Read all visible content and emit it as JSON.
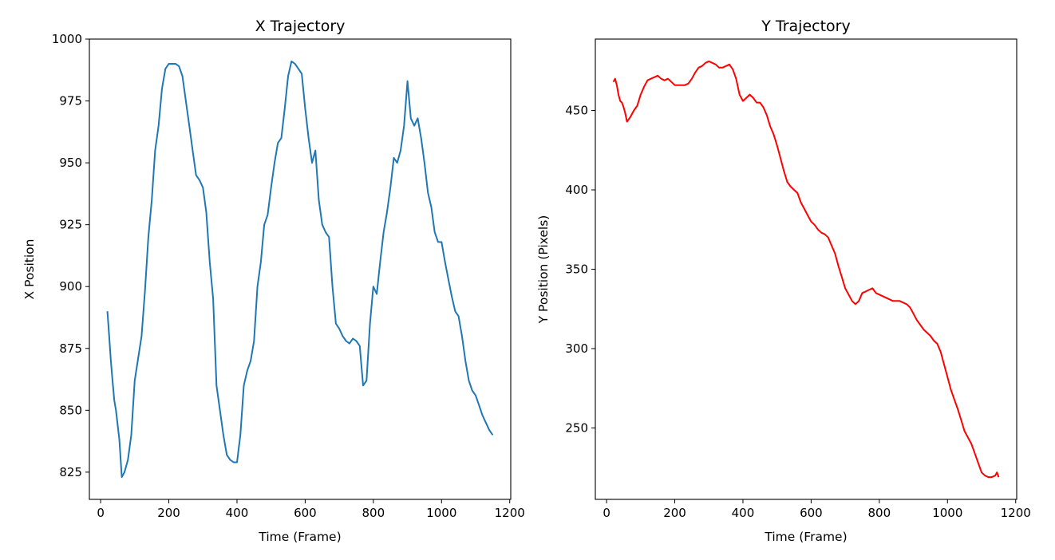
{
  "chart_data": [
    {
      "type": "line",
      "title": "X Trajectory",
      "xlabel": "Time (Frame)",
      "ylabel": "X Position",
      "xlim": [
        -33,
        1203
      ],
      "ylim": [
        814,
        1000
      ],
      "xticks": [
        0,
        200,
        400,
        600,
        800,
        1000,
        1200
      ],
      "yticks": [
        825,
        850,
        875,
        900,
        925,
        950,
        975,
        1000
      ],
      "grid": false,
      "series": [
        {
          "color": "#1f77b4",
          "x": [
            20,
            25,
            30,
            35,
            40,
            45,
            55,
            62,
            70,
            80,
            90,
            100,
            110,
            120,
            130,
            140,
            150,
            160,
            170,
            180,
            190,
            200,
            210,
            220,
            230,
            240,
            250,
            260,
            270,
            280,
            290,
            300,
            310,
            320,
            330,
            340,
            350,
            360,
            370,
            380,
            390,
            400,
            410,
            420,
            430,
            440,
            450,
            460,
            470,
            480,
            490,
            500,
            510,
            520,
            530,
            540,
            550,
            560,
            570,
            580,
            590,
            600,
            610,
            620,
            630,
            640,
            650,
            660,
            670,
            680,
            690,
            700,
            710,
            720,
            730,
            740,
            750,
            760,
            770,
            780,
            790,
            800,
            810,
            820,
            830,
            840,
            850,
            860,
            870,
            880,
            890,
            900,
            910,
            920,
            930,
            940,
            950,
            960,
            970,
            980,
            990,
            1000,
            1010,
            1020,
            1030,
            1040,
            1050,
            1060,
            1070,
            1080,
            1090,
            1100,
            1110,
            1120,
            1130,
            1140,
            1150
          ],
          "values": [
            890,
            880,
            870,
            862,
            854,
            850,
            838,
            823,
            825,
            830,
            840,
            862,
            871,
            880,
            898,
            920,
            935,
            955,
            965,
            980,
            988,
            990,
            990,
            990,
            989,
            985,
            975,
            965,
            955,
            945,
            943,
            940,
            930,
            910,
            895,
            860,
            850,
            840,
            832,
            830,
            829,
            829,
            840,
            860,
            866,
            870,
            878,
            900,
            910,
            925,
            929,
            940,
            950,
            958,
            960,
            972,
            985,
            991,
            990,
            988,
            986,
            972,
            960,
            950,
            955,
            935,
            925,
            922,
            920,
            900,
            885,
            883,
            880,
            878,
            877,
            879,
            878,
            876,
            860,
            862,
            885,
            900,
            897,
            910,
            922,
            930,
            940,
            952,
            950,
            955,
            965,
            983,
            968,
            965,
            968,
            960,
            950,
            938,
            932,
            922,
            918,
            918,
            910,
            903,
            896,
            890,
            888,
            880,
            870,
            862,
            858,
            856,
            852,
            848,
            845,
            842,
            840
          ]
        }
      ]
    },
    {
      "type": "line",
      "title": "Y Trajectory",
      "xlabel": "Time (Frame)",
      "ylabel": "Y Position (Pixels)",
      "xlim": [
        -33,
        1203
      ],
      "ylim": [
        205,
        495
      ],
      "xticks": [
        0,
        200,
        400,
        600,
        800,
        1000,
        1200
      ],
      "yticks": [
        250,
        300,
        350,
        400,
        450
      ],
      "grid": false,
      "series": [
        {
          "color": "#ff0000",
          "x": [
            20,
            25,
            30,
            35,
            40,
            45,
            50,
            55,
            60,
            70,
            80,
            90,
            100,
            110,
            120,
            130,
            140,
            150,
            160,
            170,
            180,
            190,
            200,
            210,
            220,
            230,
            240,
            250,
            260,
            270,
            280,
            290,
            300,
            310,
            320,
            330,
            340,
            350,
            360,
            370,
            380,
            390,
            400,
            410,
            420,
            430,
            440,
            450,
            460,
            470,
            480,
            490,
            500,
            510,
            520,
            530,
            540,
            550,
            560,
            570,
            580,
            590,
            600,
            610,
            620,
            630,
            640,
            650,
            660,
            670,
            680,
            690,
            700,
            710,
            720,
            730,
            740,
            750,
            760,
            770,
            780,
            790,
            800,
            810,
            820,
            830,
            840,
            850,
            860,
            870,
            880,
            890,
            900,
            910,
            920,
            930,
            940,
            950,
            960,
            970,
            980,
            990,
            1000,
            1010,
            1020,
            1030,
            1040,
            1050,
            1060,
            1070,
            1080,
            1090,
            1100,
            1110,
            1120,
            1130,
            1140,
            1145,
            1150
          ],
          "values": [
            468,
            470,
            466,
            460,
            456,
            455,
            452,
            448,
            443,
            446,
            450,
            453,
            460,
            465,
            469,
            470,
            471,
            472,
            470,
            469,
            470,
            468,
            466,
            466,
            466,
            466,
            467,
            470,
            474,
            477,
            478,
            480,
            481,
            480,
            479,
            477,
            477,
            478,
            479,
            476,
            470,
            460,
            456,
            458,
            460,
            458,
            455,
            455,
            452,
            447,
            440,
            435,
            428,
            420,
            412,
            405,
            402,
            400,
            398,
            392,
            388,
            384,
            380,
            378,
            375,
            373,
            372,
            370,
            365,
            360,
            352,
            345,
            338,
            334,
            330,
            328,
            330,
            335,
            336,
            337,
            338,
            335,
            334,
            333,
            332,
            331,
            330,
            330,
            330,
            329,
            328,
            326,
            322,
            318,
            315,
            312,
            310,
            308,
            305,
            303,
            298,
            290,
            282,
            274,
            268,
            262,
            255,
            248,
            244,
            240,
            234,
            228,
            222,
            220,
            219,
            219,
            220,
            222,
            219
          ]
        }
      ]
    }
  ]
}
